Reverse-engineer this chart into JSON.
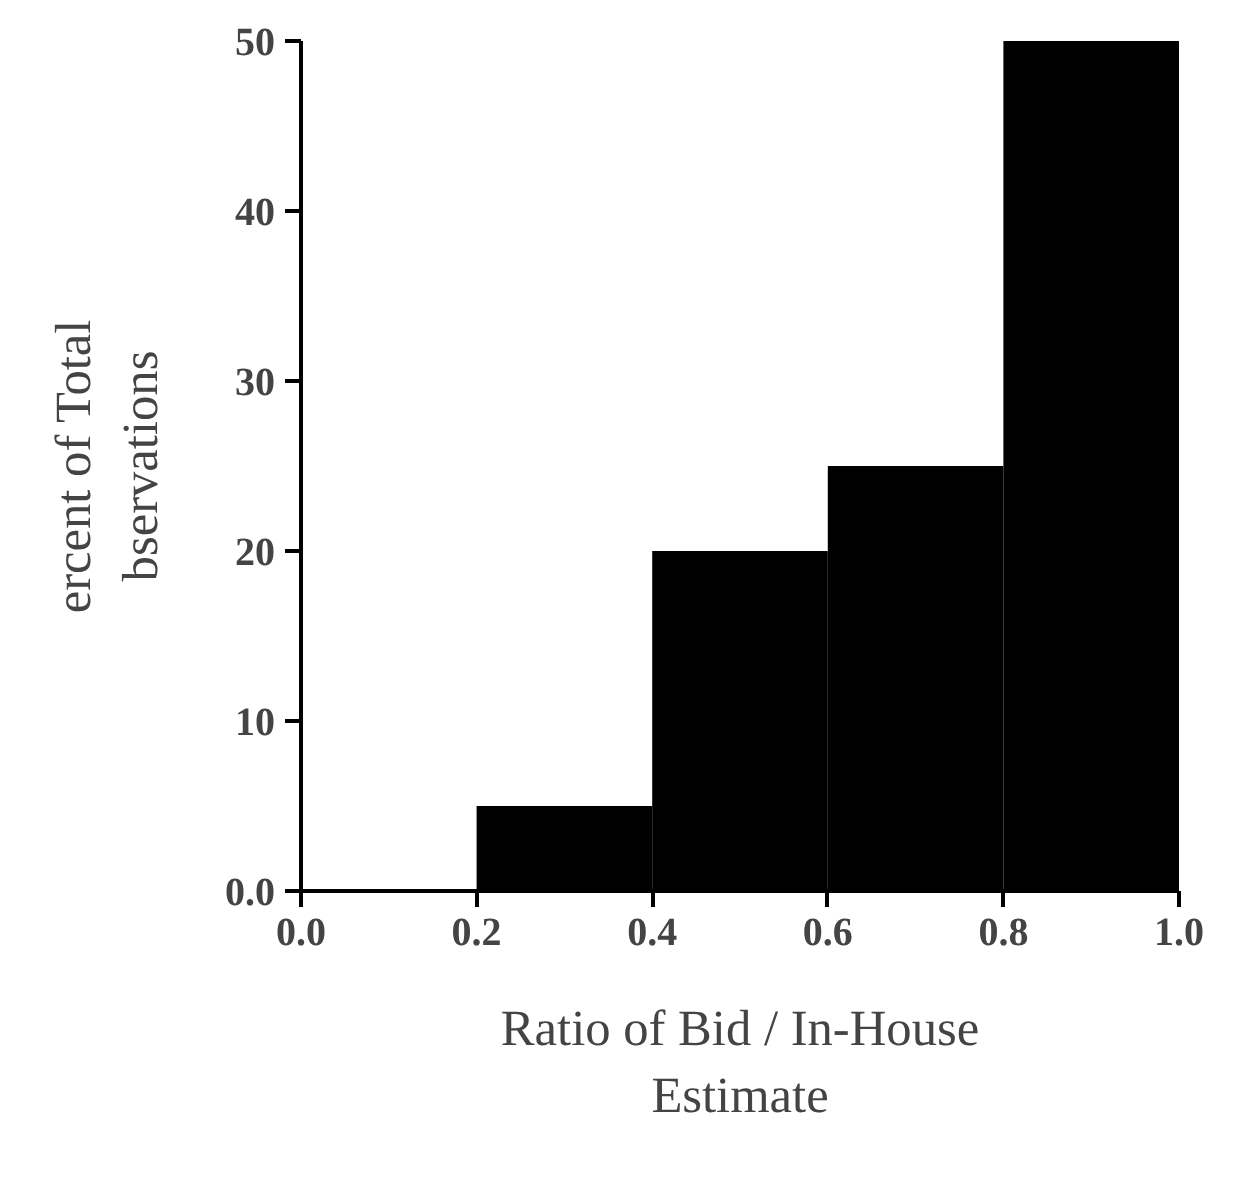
{
  "chart_data": {
    "type": "histogram",
    "xlabel": "Ratio of Bid / In-House\nEstimate",
    "ylabel": "ercent of Total\nbservations",
    "bins": [
      0,
      0.2,
      0.4,
      0.6,
      0.8,
      1.0
    ],
    "values": [
      0,
      5,
      20,
      25,
      50
    ],
    "color": "#000000",
    "xlim": [
      0,
      1.0
    ],
    "ylim": [
      0,
      50
    ],
    "xticks": [
      {
        "value": 0,
        "label": "0.0"
      },
      {
        "value": 0.2,
        "label": "0.2"
      },
      {
        "value": 0.4,
        "label": "0.4"
      },
      {
        "value": 0.6,
        "label": "0.6"
      },
      {
        "value": 0.8,
        "label": "0.8"
      },
      {
        "value": 1.0,
        "label": "1.0"
      }
    ],
    "yticks": [
      {
        "value": 0,
        "label": "0.0"
      },
      10,
      20,
      30,
      40,
      50
    ],
    "grid": false
  }
}
